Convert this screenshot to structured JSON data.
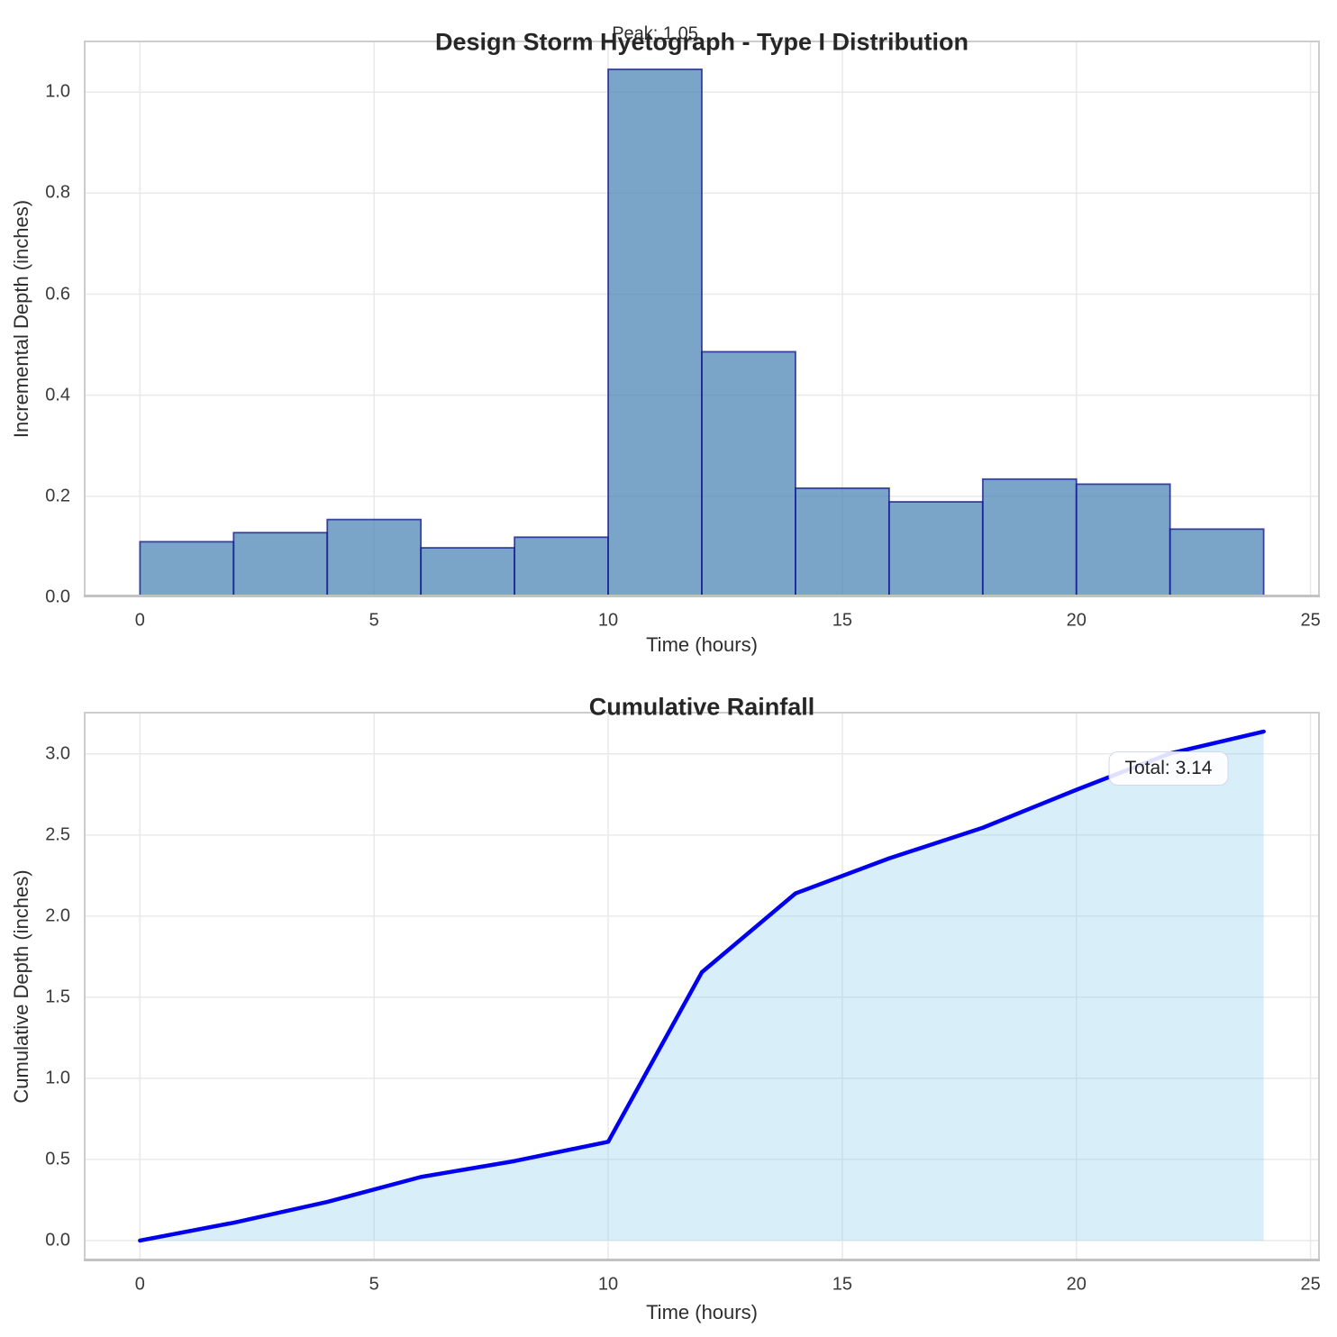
{
  "figure": {
    "background": "#ffffff"
  },
  "colors": {
    "bar_fill": "rgba(70,130,180,0.72)",
    "bar_edge": "rgba(21,27,141,0.78)",
    "line": "#0000EE",
    "area_fill": "rgba(135,206,235,0.32)",
    "grid": "#E9E9E9",
    "spine": "#CDCDCD",
    "spine_bottom": "#C2C2C2",
    "title_text": "#262626",
    "tick_text": "#3A3A3A",
    "annotation_box_border": "#D3D6EE"
  },
  "chart_data": [
    {
      "type": "bar",
      "title": "Design Storm Hyetograph - Type I Distribution",
      "xlabel": "Time (hours)",
      "ylabel": "Incremental Depth (inches)",
      "annotation": "Peak: 1.05",
      "bin_width": 2,
      "bin_starts": [
        0,
        2,
        4,
        6,
        8,
        10,
        12,
        14,
        16,
        18,
        20,
        22
      ],
      "values": [
        0.11,
        0.128,
        0.154,
        0.098,
        0.119,
        1.045,
        0.486,
        0.216,
        0.189,
        0.234,
        0.224,
        0.135
      ],
      "xlim": [
        -1.2,
        25.2
      ],
      "ylim": [
        0,
        1.102
      ],
      "xticks": [
        0,
        5,
        10,
        15,
        20,
        25
      ],
      "xtick_labels": [
        "0",
        "5",
        "10",
        "15",
        "20",
        "25"
      ],
      "yticks": [
        0,
        0.2,
        0.4,
        0.6,
        0.8,
        1.0
      ],
      "ytick_labels": [
        "0.0",
        "0.2",
        "0.4",
        "0.6",
        "0.8",
        "1.0"
      ],
      "grid": true
    },
    {
      "type": "area",
      "title": "Cumulative Rainfall",
      "xlabel": "Time (hours)",
      "ylabel": "Cumulative Depth (inches)",
      "annotation": "Total: 3.14",
      "x": [
        0,
        2,
        4,
        6,
        8,
        10,
        12,
        14,
        16,
        18,
        20,
        22,
        24
      ],
      "values": [
        0,
        0.11,
        0.238,
        0.392,
        0.49,
        0.609,
        1.654,
        2.14,
        2.356,
        2.545,
        2.779,
        3.003,
        3.138
      ],
      "xlim": [
        -1.2,
        25.2
      ],
      "ylim": [
        -0.128,
        3.26
      ],
      "xticks": [
        0,
        5,
        10,
        15,
        20,
        25
      ],
      "xtick_labels": [
        "0",
        "5",
        "10",
        "15",
        "20",
        "25"
      ],
      "yticks": [
        0,
        0.5,
        1.0,
        1.5,
        2.0,
        2.5,
        3.0
      ],
      "ytick_labels": [
        "0.0",
        "0.5",
        "1.0",
        "1.5",
        "2.0",
        "2.5",
        "3.0"
      ],
      "grid": true
    }
  ]
}
